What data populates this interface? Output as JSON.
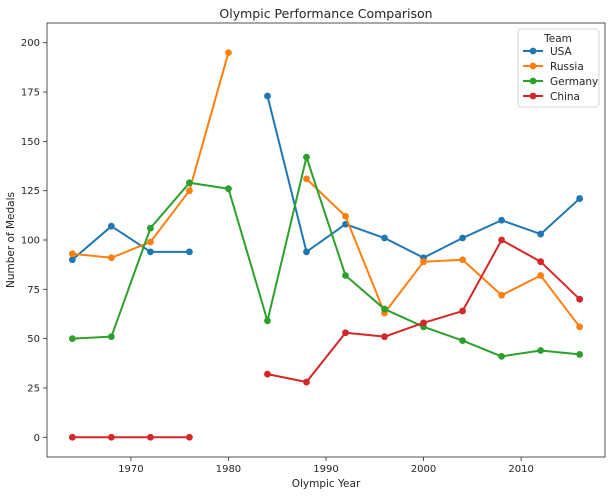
{
  "chart_data": {
    "type": "line",
    "title": "Olympic Performance Comparison",
    "xlabel": "Olympic Year",
    "ylabel": "Number of Medals",
    "xlim": [
      1961.4,
      2018.6
    ],
    "ylim": [
      -10,
      210
    ],
    "xticks": [
      1970,
      1980,
      1990,
      2000,
      2010
    ],
    "yticks": [
      0,
      25,
      50,
      75,
      100,
      125,
      150,
      175,
      200
    ],
    "grid": false,
    "legend": {
      "title": "Team",
      "placement": "top-right"
    },
    "series": [
      {
        "name": "USA",
        "color": "#1f77b4",
        "points": [
          [
            1964,
            90
          ],
          [
            1968,
            107
          ],
          [
            1972,
            94
          ],
          [
            1976,
            94
          ],
          [
            1980,
            null
          ],
          [
            1984,
            173
          ],
          [
            1988,
            94
          ],
          [
            1992,
            108
          ],
          [
            1996,
            101
          ],
          [
            2000,
            91
          ],
          [
            2004,
            101
          ],
          [
            2008,
            110
          ],
          [
            2012,
            103
          ],
          [
            2016,
            121
          ]
        ]
      },
      {
        "name": "Russia",
        "color": "#ff7f0e",
        "points": [
          [
            1964,
            93
          ],
          [
            1968,
            91
          ],
          [
            1972,
            99
          ],
          [
            1976,
            125
          ],
          [
            1980,
            195
          ],
          [
            1984,
            null
          ],
          [
            1988,
            131
          ],
          [
            1992,
            112
          ],
          [
            1996,
            63
          ],
          [
            2000,
            89
          ],
          [
            2004,
            90
          ],
          [
            2008,
            72
          ],
          [
            2012,
            82
          ],
          [
            2016,
            56
          ]
        ]
      },
      {
        "name": "Germany",
        "color": "#2ca02c",
        "points": [
          [
            1964,
            50
          ],
          [
            1968,
            51
          ],
          [
            1972,
            106
          ],
          [
            1976,
            129
          ],
          [
            1980,
            126
          ],
          [
            1984,
            59
          ],
          [
            1988,
            142
          ],
          [
            1992,
            82
          ],
          [
            1996,
            65
          ],
          [
            2000,
            56
          ],
          [
            2004,
            49
          ],
          [
            2008,
            41
          ],
          [
            2012,
            44
          ],
          [
            2016,
            42
          ]
        ]
      },
      {
        "name": "China",
        "color": "#d62728",
        "points": [
          [
            1964,
            0
          ],
          [
            1968,
            0
          ],
          [
            1972,
            0
          ],
          [
            1976,
            0
          ],
          [
            1980,
            null
          ],
          [
            1984,
            32
          ],
          [
            1988,
            28
          ],
          [
            1992,
            53
          ],
          [
            1996,
            51
          ],
          [
            2000,
            58
          ],
          [
            2004,
            64
          ],
          [
            2008,
            100
          ],
          [
            2012,
            89
          ],
          [
            2016,
            70
          ]
        ]
      }
    ]
  }
}
